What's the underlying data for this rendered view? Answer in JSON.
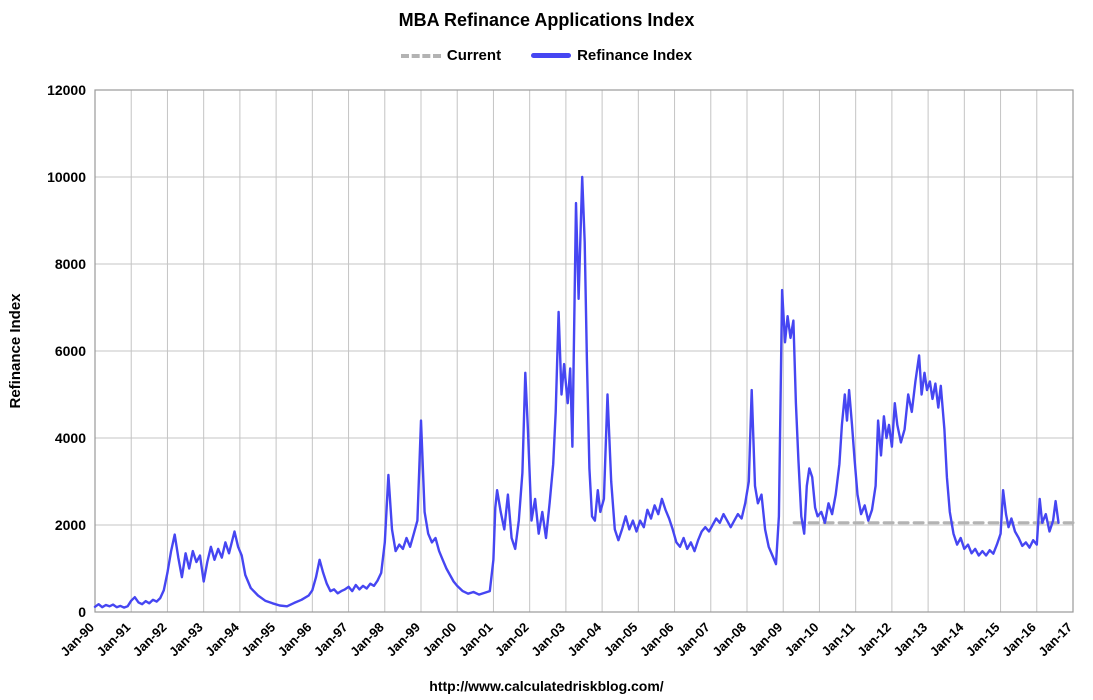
{
  "page": {
    "title": "MBA Refinance Applications Index",
    "footer_url": "http://www.calculatedriskblog.com/"
  },
  "legend": [
    {
      "label": "Current",
      "style": "dashed",
      "color": "#b3b3b3"
    },
    {
      "label": "Refinance Index",
      "style": "solid",
      "color": "#4646f2"
    }
  ],
  "chart_data": {
    "type": "line",
    "title": "MBA Refinance Applications Index",
    "xlabel": "",
    "ylabel": "Refinance Index",
    "xlim": [
      1990,
      2017
    ],
    "ylim": [
      0,
      12000
    ],
    "y_ticks": [
      0,
      2000,
      4000,
      6000,
      8000,
      10000,
      12000
    ],
    "x_tick_labels": [
      "Jan-90",
      "Jan-91",
      "Jan-92",
      "Jan-93",
      "Jan-94",
      "Jan-95",
      "Jan-96",
      "Jan-97",
      "Jan-98",
      "Jan-99",
      "Jan-00",
      "Jan-01",
      "Jan-02",
      "Jan-03",
      "Jan-04",
      "Jan-05",
      "Jan-06",
      "Jan-07",
      "Jan-08",
      "Jan-09",
      "Jan-10",
      "Jan-11",
      "Jan-12",
      "Jan-13",
      "Jan-14",
      "Jan-15",
      "Jan-16",
      "Jan-17"
    ],
    "grid": true,
    "legend_position": "top",
    "grid_color": "#c4c4c4",
    "border_color": "#9a9a9a",
    "series": [
      {
        "name": "Current",
        "style": "dashed",
        "color": "#b3b3b3",
        "width": 3,
        "points": [
          [
            2009.3,
            2050
          ],
          [
            2017,
            2050
          ]
        ]
      },
      {
        "name": "Refinance Index",
        "style": "solid",
        "color": "#4646f2",
        "width": 2.4,
        "points": [
          [
            1990.0,
            120
          ],
          [
            1990.1,
            180
          ],
          [
            1990.2,
            110
          ],
          [
            1990.3,
            160
          ],
          [
            1990.4,
            130
          ],
          [
            1990.5,
            170
          ],
          [
            1990.6,
            110
          ],
          [
            1990.7,
            140
          ],
          [
            1990.8,
            100
          ],
          [
            1990.9,
            130
          ],
          [
            1991.0,
            260
          ],
          [
            1991.1,
            340
          ],
          [
            1991.2,
            220
          ],
          [
            1991.3,
            180
          ],
          [
            1991.4,
            250
          ],
          [
            1991.5,
            200
          ],
          [
            1991.6,
            280
          ],
          [
            1991.7,
            240
          ],
          [
            1991.8,
            320
          ],
          [
            1991.9,
            500
          ],
          [
            1992.0,
            900
          ],
          [
            1992.1,
            1400
          ],
          [
            1992.2,
            1780
          ],
          [
            1992.3,
            1250
          ],
          [
            1992.4,
            800
          ],
          [
            1992.5,
            1350
          ],
          [
            1992.6,
            1000
          ],
          [
            1992.7,
            1400
          ],
          [
            1992.8,
            1150
          ],
          [
            1992.9,
            1300
          ],
          [
            1993.0,
            700
          ],
          [
            1993.1,
            1150
          ],
          [
            1993.2,
            1500
          ],
          [
            1993.3,
            1200
          ],
          [
            1993.4,
            1450
          ],
          [
            1993.5,
            1250
          ],
          [
            1993.6,
            1600
          ],
          [
            1993.7,
            1350
          ],
          [
            1993.85,
            1850
          ],
          [
            1993.95,
            1500
          ],
          [
            1994.05,
            1300
          ],
          [
            1994.15,
            850
          ],
          [
            1994.3,
            550
          ],
          [
            1994.5,
            380
          ],
          [
            1994.7,
            260
          ],
          [
            1994.9,
            200
          ],
          [
            1995.1,
            150
          ],
          [
            1995.3,
            130
          ],
          [
            1995.5,
            210
          ],
          [
            1995.7,
            280
          ],
          [
            1995.9,
            380
          ],
          [
            1996.0,
            500
          ],
          [
            1996.1,
            800
          ],
          [
            1996.2,
            1200
          ],
          [
            1996.3,
            900
          ],
          [
            1996.4,
            650
          ],
          [
            1996.5,
            480
          ],
          [
            1996.6,
            520
          ],
          [
            1996.7,
            430
          ],
          [
            1996.8,
            480
          ],
          [
            1996.9,
            520
          ],
          [
            1997.0,
            580
          ],
          [
            1997.1,
            480
          ],
          [
            1997.2,
            620
          ],
          [
            1997.3,
            520
          ],
          [
            1997.4,
            600
          ],
          [
            1997.5,
            540
          ],
          [
            1997.6,
            650
          ],
          [
            1997.7,
            600
          ],
          [
            1997.8,
            720
          ],
          [
            1997.9,
            900
          ],
          [
            1998.0,
            1600
          ],
          [
            1998.1,
            3150
          ],
          [
            1998.2,
            1900
          ],
          [
            1998.3,
            1400
          ],
          [
            1998.4,
            1550
          ],
          [
            1998.5,
            1450
          ],
          [
            1998.6,
            1700
          ],
          [
            1998.7,
            1500
          ],
          [
            1998.8,
            1800
          ],
          [
            1998.9,
            2100
          ],
          [
            1999.0,
            4400
          ],
          [
            1999.1,
            2300
          ],
          [
            1999.2,
            1800
          ],
          [
            1999.3,
            1600
          ],
          [
            1999.4,
            1700
          ],
          [
            1999.5,
            1400
          ],
          [
            1999.6,
            1200
          ],
          [
            1999.7,
            1000
          ],
          [
            1999.8,
            850
          ],
          [
            1999.9,
            700
          ],
          [
            2000.0,
            600
          ],
          [
            2000.15,
            480
          ],
          [
            2000.3,
            420
          ],
          [
            2000.45,
            460
          ],
          [
            2000.6,
            400
          ],
          [
            2000.75,
            440
          ],
          [
            2000.9,
            480
          ],
          [
            2001.0,
            1200
          ],
          [
            2001.05,
            2400
          ],
          [
            2001.1,
            2800
          ],
          [
            2001.2,
            2300
          ],
          [
            2001.3,
            1900
          ],
          [
            2001.4,
            2700
          ],
          [
            2001.5,
            1700
          ],
          [
            2001.6,
            1450
          ],
          [
            2001.7,
            2100
          ],
          [
            2001.8,
            3200
          ],
          [
            2001.88,
            5500
          ],
          [
            2001.95,
            4200
          ],
          [
            2002.05,
            2100
          ],
          [
            2002.15,
            2600
          ],
          [
            2002.25,
            1800
          ],
          [
            2002.35,
            2300
          ],
          [
            2002.45,
            1700
          ],
          [
            2002.55,
            2500
          ],
          [
            2002.65,
            3400
          ],
          [
            2002.72,
            4600
          ],
          [
            2002.8,
            6900
          ],
          [
            2002.88,
            5000
          ],
          [
            2002.95,
            5700
          ],
          [
            2003.05,
            4800
          ],
          [
            2003.12,
            5600
          ],
          [
            2003.18,
            3800
          ],
          [
            2003.28,
            9400
          ],
          [
            2003.35,
            7200
          ],
          [
            2003.45,
            10000
          ],
          [
            2003.52,
            8500
          ],
          [
            2003.58,
            5800
          ],
          [
            2003.65,
            3300
          ],
          [
            2003.72,
            2200
          ],
          [
            2003.8,
            2100
          ],
          [
            2003.88,
            2800
          ],
          [
            2003.95,
            2300
          ],
          [
            2004.05,
            2600
          ],
          [
            2004.15,
            5000
          ],
          [
            2004.25,
            3000
          ],
          [
            2004.35,
            1900
          ],
          [
            2004.45,
            1650
          ],
          [
            2004.55,
            1900
          ],
          [
            2004.65,
            2200
          ],
          [
            2004.75,
            1900
          ],
          [
            2004.85,
            2100
          ],
          [
            2004.95,
            1850
          ],
          [
            2005.05,
            2100
          ],
          [
            2005.15,
            1950
          ],
          [
            2005.25,
            2350
          ],
          [
            2005.35,
            2150
          ],
          [
            2005.45,
            2450
          ],
          [
            2005.55,
            2250
          ],
          [
            2005.65,
            2600
          ],
          [
            2005.75,
            2350
          ],
          [
            2005.85,
            2150
          ],
          [
            2005.95,
            1900
          ],
          [
            2006.05,
            1600
          ],
          [
            2006.15,
            1500
          ],
          [
            2006.25,
            1700
          ],
          [
            2006.35,
            1450
          ],
          [
            2006.45,
            1600
          ],
          [
            2006.55,
            1400
          ],
          [
            2006.65,
            1650
          ],
          [
            2006.75,
            1850
          ],
          [
            2006.85,
            1950
          ],
          [
            2006.95,
            1850
          ],
          [
            2007.05,
            2000
          ],
          [
            2007.15,
            2150
          ],
          [
            2007.25,
            2050
          ],
          [
            2007.35,
            2250
          ],
          [
            2007.45,
            2100
          ],
          [
            2007.55,
            1950
          ],
          [
            2007.65,
            2100
          ],
          [
            2007.75,
            2250
          ],
          [
            2007.85,
            2150
          ],
          [
            2007.95,
            2500
          ],
          [
            2008.05,
            3000
          ],
          [
            2008.13,
            5100
          ],
          [
            2008.22,
            2900
          ],
          [
            2008.3,
            2500
          ],
          [
            2008.4,
            2700
          ],
          [
            2008.5,
            1900
          ],
          [
            2008.6,
            1500
          ],
          [
            2008.7,
            1300
          ],
          [
            2008.8,
            1100
          ],
          [
            2008.88,
            2200
          ],
          [
            2008.97,
            7400
          ],
          [
            2009.05,
            6200
          ],
          [
            2009.12,
            6800
          ],
          [
            2009.2,
            6300
          ],
          [
            2009.28,
            6700
          ],
          [
            2009.35,
            4800
          ],
          [
            2009.42,
            3500
          ],
          [
            2009.5,
            2200
          ],
          [
            2009.58,
            1800
          ],
          [
            2009.65,
            2900
          ],
          [
            2009.72,
            3300
          ],
          [
            2009.8,
            3100
          ],
          [
            2009.88,
            2400
          ],
          [
            2009.95,
            2200
          ],
          [
            2010.05,
            2300
          ],
          [
            2010.15,
            2050
          ],
          [
            2010.25,
            2500
          ],
          [
            2010.35,
            2250
          ],
          [
            2010.45,
            2700
          ],
          [
            2010.55,
            3400
          ],
          [
            2010.62,
            4300
          ],
          [
            2010.7,
            5000
          ],
          [
            2010.76,
            4400
          ],
          [
            2010.82,
            5100
          ],
          [
            2010.9,
            4300
          ],
          [
            2010.97,
            3500
          ],
          [
            2011.05,
            2700
          ],
          [
            2011.15,
            2250
          ],
          [
            2011.25,
            2450
          ],
          [
            2011.35,
            2100
          ],
          [
            2011.45,
            2350
          ],
          [
            2011.55,
            2900
          ],
          [
            2011.62,
            4400
          ],
          [
            2011.7,
            3600
          ],
          [
            2011.78,
            4500
          ],
          [
            2011.85,
            4000
          ],
          [
            2011.92,
            4300
          ],
          [
            2012.0,
            3800
          ],
          [
            2012.08,
            4800
          ],
          [
            2012.15,
            4300
          ],
          [
            2012.25,
            3900
          ],
          [
            2012.35,
            4200
          ],
          [
            2012.45,
            5000
          ],
          [
            2012.55,
            4600
          ],
          [
            2012.65,
            5300
          ],
          [
            2012.75,
            5900
          ],
          [
            2012.82,
            5000
          ],
          [
            2012.9,
            5500
          ],
          [
            2012.97,
            5100
          ],
          [
            2013.05,
            5300
          ],
          [
            2013.12,
            4900
          ],
          [
            2013.2,
            5250
          ],
          [
            2013.28,
            4700
          ],
          [
            2013.35,
            5200
          ],
          [
            2013.45,
            4200
          ],
          [
            2013.52,
            3100
          ],
          [
            2013.6,
            2300
          ],
          [
            2013.7,
            1800
          ],
          [
            2013.8,
            1550
          ],
          [
            2013.9,
            1700
          ],
          [
            2014.0,
            1450
          ],
          [
            2014.1,
            1550
          ],
          [
            2014.2,
            1350
          ],
          [
            2014.3,
            1450
          ],
          [
            2014.4,
            1300
          ],
          [
            2014.5,
            1400
          ],
          [
            2014.6,
            1300
          ],
          [
            2014.7,
            1420
          ],
          [
            2014.8,
            1340
          ],
          [
            2014.9,
            1550
          ],
          [
            2015.0,
            1800
          ],
          [
            2015.07,
            2800
          ],
          [
            2015.15,
            2250
          ],
          [
            2015.22,
            1950
          ],
          [
            2015.3,
            2150
          ],
          [
            2015.4,
            1850
          ],
          [
            2015.5,
            1700
          ],
          [
            2015.6,
            1520
          ],
          [
            2015.7,
            1600
          ],
          [
            2015.8,
            1480
          ],
          [
            2015.9,
            1650
          ],
          [
            2016.0,
            1550
          ],
          [
            2016.08,
            2600
          ],
          [
            2016.15,
            2050
          ],
          [
            2016.25,
            2250
          ],
          [
            2016.35,
            1850
          ],
          [
            2016.45,
            2100
          ],
          [
            2016.52,
            2550
          ],
          [
            2016.6,
            2050
          ]
        ]
      }
    ]
  }
}
